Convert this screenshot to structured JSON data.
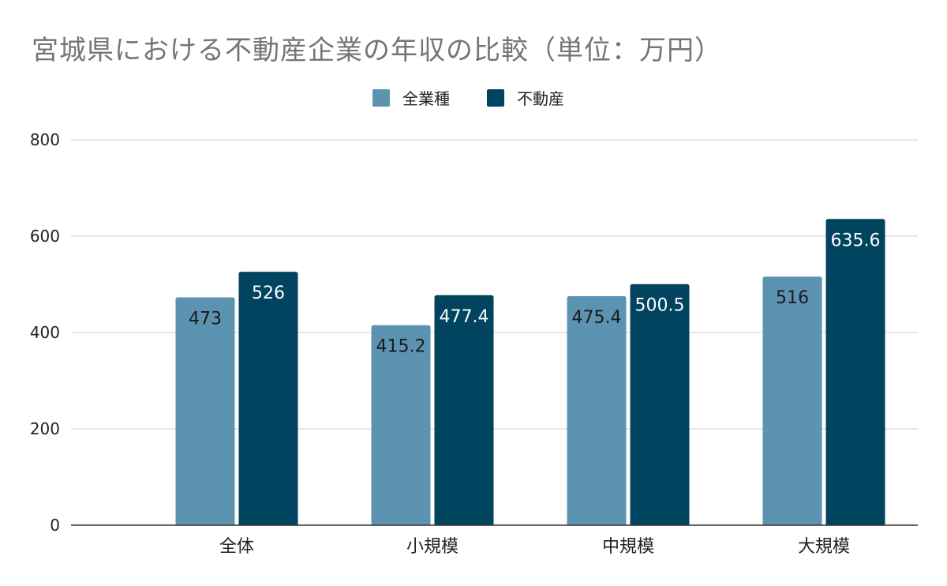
{
  "chart_data": {
    "type": "bar",
    "title": "宮城県における不動産企業の年収の比較（単位：万円）",
    "categories": [
      "全体",
      "小規模",
      "中規模",
      "大規模"
    ],
    "series": [
      {
        "name": "全業種",
        "values": [
          473,
          415.2,
          475.4,
          516
        ],
        "labels": [
          "473",
          "415.2",
          "475.4",
          "516"
        ],
        "color": "#5b93b1",
        "label_color": "#1a1a1a"
      },
      {
        "name": "不動産",
        "values": [
          526,
          477.4,
          500.5,
          635.6
        ],
        "labels": [
          "526",
          "477.4",
          "500.5",
          "635.6"
        ],
        "color": "#01445f",
        "label_color": "#ffffff"
      }
    ],
    "ylim": [
      0,
      800
    ],
    "yticks": [
      {
        "value": 0,
        "label": "0"
      },
      {
        "value": 200,
        "label": "200"
      },
      {
        "value": 400,
        "label": "400"
      },
      {
        "value": 600,
        "label": "600"
      },
      {
        "value": 800,
        "label": "800"
      }
    ],
    "grid": true,
    "legend_position": "top-center"
  }
}
